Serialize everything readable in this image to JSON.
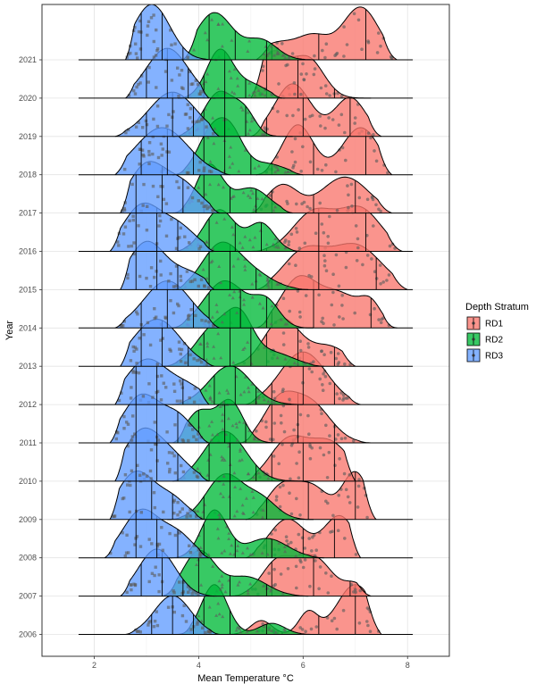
{
  "chart_data": {
    "type": "ridgeline",
    "xlabel": "Mean Temperature °C",
    "ylabel": "Year",
    "xlim": [
      1.0,
      8.8
    ],
    "x_ticks": [
      2,
      4,
      6,
      8
    ],
    "grid": true,
    "legend": {
      "title": "Depth Stratum",
      "placement": "right",
      "entries": [
        "RD1",
        "RD2",
        "RD3"
      ]
    },
    "colors": {
      "RD1": "#F8766D",
      "RD2": "#00BA38",
      "RD3": "#619CFF"
    },
    "years": [
      "2006",
      "2007",
      "2008",
      "2009",
      "2010",
      "2011",
      "2012",
      "2013",
      "2014",
      "2015",
      "2016",
      "2017",
      "2018",
      "2019",
      "2020",
      "2021"
    ],
    "series": [
      {
        "name": "RD1",
        "range": [
          [
            4.4,
            7.5
          ],
          [
            4.6,
            7.3
          ],
          [
            4.9,
            7.1
          ],
          [
            4.9,
            7.4
          ],
          [
            4.9,
            7.0
          ],
          [
            4.8,
            7.3
          ],
          [
            4.9,
            7.1
          ],
          [
            4.5,
            7.0
          ],
          [
            5.1,
            7.8
          ],
          [
            5.1,
            8.0
          ],
          [
            5.0,
            7.9
          ],
          [
            5.0,
            7.7
          ],
          [
            5.1,
            7.7
          ],
          [
            5.0,
            7.5
          ],
          [
            5.0,
            7.3
          ],
          [
            5.1,
            7.8
          ]
        ],
        "peaks": [
          [
            [
              5.2,
              0.2,
              0.25
            ],
            [
              6.1,
              0.18,
              0.4
            ],
            [
              7.0,
              0.35,
              0.9
            ]
          ],
          [
            [
              5.5,
              0.3,
              0.6
            ],
            [
              6.2,
              0.35,
              0.7
            ],
            [
              7.0,
              0.2,
              0.2
            ]
          ],
          [
            [
              5.7,
              0.35,
              0.7
            ],
            [
              6.7,
              0.3,
              0.75
            ]
          ],
          [
            [
              5.6,
              0.3,
              0.6
            ],
            [
              6.2,
              0.3,
              0.55
            ],
            [
              7.0,
              0.25,
              0.85
            ]
          ],
          [
            [
              5.7,
              0.35,
              0.7
            ],
            [
              6.5,
              0.4,
              0.7
            ]
          ],
          [
            [
              5.5,
              0.3,
              0.6
            ],
            [
              6.1,
              0.4,
              0.75
            ]
          ],
          [
            [
              6.0,
              0.45,
              0.95
            ]
          ],
          [
            [
              5.6,
              0.35,
              0.85
            ],
            [
              6.5,
              0.35,
              0.35
            ]
          ],
          [
            [
              5.9,
              0.35,
              0.85
            ],
            [
              6.7,
              0.4,
              0.6
            ],
            [
              7.3,
              0.2,
              0.35
            ]
          ],
          [
            [
              6.0,
              0.4,
              0.65
            ],
            [
              7.0,
              0.5,
              0.8
            ]
          ],
          [
            [
              6.2,
              0.4,
              0.7
            ],
            [
              7.1,
              0.4,
              0.75
            ]
          ],
          [
            [
              5.6,
              0.3,
              0.5
            ],
            [
              6.8,
              0.45,
              0.65
            ]
          ],
          [
            [
              5.9,
              0.3,
              0.9
            ],
            [
              7.1,
              0.35,
              0.85
            ]
          ],
          [
            [
              5.8,
              0.35,
              0.95
            ],
            [
              6.9,
              0.3,
              0.7
            ]
          ],
          [
            [
              5.4,
              0.3,
              0.8
            ],
            [
              6.1,
              0.3,
              0.7
            ]
          ],
          [
            [
              5.5,
              0.35,
              0.3
            ],
            [
              6.2,
              0.3,
              0.4
            ],
            [
              7.1,
              0.35,
              0.95
            ]
          ]
        ],
        "quantiles": [
          [
            5.6,
            6.3,
            7.0
          ],
          [
            5.4,
            6.2,
            6.9
          ],
          [
            5.3,
            6.0,
            6.6
          ],
          [
            5.3,
            6.1,
            7.0
          ],
          [
            5.4,
            6.0,
            6.6
          ],
          [
            5.4,
            5.9,
            6.6
          ],
          [
            5.4,
            6.0,
            6.6
          ],
          [
            5.3,
            5.9,
            6.6
          ],
          [
            5.4,
            6.2,
            7.3
          ],
          [
            5.4,
            6.3,
            7.4
          ],
          [
            5.3,
            6.3,
            7.2
          ],
          [
            5.4,
            6.2,
            7.0
          ],
          [
            5.4,
            6.2,
            7.2
          ],
          [
            5.3,
            6.0,
            6.9
          ],
          [
            5.3,
            5.9,
            6.6
          ],
          [
            5.4,
            6.3,
            7.2
          ]
        ]
      },
      {
        "name": "RD2",
        "range": [
          [
            3.6,
            6.2
          ],
          [
            3.3,
            6.1
          ],
          [
            3.4,
            6.4
          ],
          [
            3.4,
            6.2
          ],
          [
            3.5,
            6.2
          ],
          [
            3.5,
            6.0
          ],
          [
            3.5,
            6.0
          ],
          [
            3.3,
            6.4
          ],
          [
            3.5,
            6.2
          ],
          [
            3.5,
            6.1
          ],
          [
            3.5,
            6.0
          ],
          [
            3.5,
            5.8
          ],
          [
            3.5,
            6.0
          ],
          [
            3.5,
            5.8
          ],
          [
            3.6,
            5.6
          ],
          [
            3.7,
            6.4
          ]
        ],
        "peaks": [
          [
            [
              4.3,
              0.25,
              0.9
            ],
            [
              5.4,
              0.25,
              0.2
            ]
          ],
          [
            [
              4.0,
              0.3,
              0.8
            ],
            [
              4.9,
              0.4,
              0.35
            ]
          ],
          [
            [
              4.3,
              0.25,
              0.85
            ],
            [
              5.3,
              0.4,
              0.35
            ]
          ],
          [
            [
              4.5,
              0.35,
              0.8
            ],
            [
              5.2,
              0.3,
              0.35
            ]
          ],
          [
            [
              4.5,
              0.4,
              0.9
            ]
          ],
          [
            [
              4.0,
              0.25,
              0.55
            ],
            [
              4.6,
              0.25,
              0.75
            ]
          ],
          [
            [
              4.6,
              0.4,
              0.7
            ]
          ],
          [
            [
              4.3,
              0.35,
              0.7
            ],
            [
              4.8,
              0.25,
              0.7
            ],
            [
              5.4,
              0.4,
              0.25
            ]
          ],
          [
            [
              4.5,
              0.4,
              0.85
            ],
            [
              5.3,
              0.25,
              0.45
            ]
          ],
          [
            [
              4.4,
              0.35,
              0.75
            ],
            [
              5.0,
              0.4,
              0.3
            ]
          ],
          [
            [
              4.4,
              0.3,
              0.75
            ],
            [
              5.2,
              0.25,
              0.5
            ]
          ],
          [
            [
              4.2,
              0.25,
              0.85
            ],
            [
              5.0,
              0.35,
              0.45
            ]
          ],
          [
            [
              4.2,
              0.25,
              0.65
            ],
            [
              4.6,
              0.25,
              0.75
            ],
            [
              5.3,
              0.35,
              0.2
            ]
          ],
          [
            [
              4.4,
              0.3,
              0.8
            ],
            [
              4.9,
              0.2,
              0.35
            ]
          ],
          [
            [
              4.4,
              0.25,
              0.85
            ],
            [
              5.0,
              0.3,
              0.25
            ]
          ],
          [
            [
              4.3,
              0.35,
              0.85
            ],
            [
              5.2,
              0.3,
              0.35
            ]
          ]
        ],
        "quantiles": [
          [
            4.1,
            4.6,
            5.3
          ],
          [
            4.0,
            4.6,
            5.3
          ],
          [
            4.1,
            4.7,
            5.4
          ],
          [
            4.1,
            4.6,
            5.3
          ],
          [
            4.2,
            4.6,
            5.1
          ],
          [
            4.0,
            4.5,
            4.9
          ],
          [
            4.3,
            4.7,
            5.1
          ],
          [
            4.1,
            4.6,
            5.0
          ],
          [
            4.2,
            4.8,
            5.3
          ],
          [
            4.2,
            4.6,
            5.1
          ],
          [
            4.2,
            4.7,
            5.2
          ],
          [
            4.1,
            4.6,
            5.1
          ],
          [
            4.1,
            4.5,
            5.0
          ],
          [
            4.1,
            4.5,
            4.9
          ],
          [
            4.1,
            4.5,
            4.9
          ],
          [
            4.2,
            4.7,
            5.3
          ]
        ]
      },
      {
        "name": "RD3",
        "range": [
          [
            2.6,
            4.4
          ],
          [
            2.5,
            4.3
          ],
          [
            2.2,
            4.2
          ],
          [
            2.3,
            4.1
          ],
          [
            2.4,
            4.2
          ],
          [
            2.3,
            4.2
          ],
          [
            2.4,
            4.2
          ],
          [
            2.5,
            4.3
          ],
          [
            2.4,
            4.4
          ],
          [
            2.5,
            4.3
          ],
          [
            2.3,
            4.3
          ],
          [
            2.5,
            4.4
          ],
          [
            2.4,
            4.6
          ],
          [
            2.4,
            4.4
          ],
          [
            2.6,
            4.2
          ],
          [
            2.6,
            4.3
          ]
        ],
        "peaks": [
          [
            [
              3.5,
              0.35,
              0.7
            ]
          ],
          [
            [
              3.2,
              0.35,
              0.85
            ]
          ],
          [
            [
              2.9,
              0.35,
              0.85
            ],
            [
              3.6,
              0.3,
              0.4
            ]
          ],
          [
            [
              2.8,
              0.35,
              0.85
            ],
            [
              3.5,
              0.3,
              0.35
            ]
          ],
          [
            [
              2.9,
              0.35,
              0.85
            ],
            [
              3.5,
              0.35,
              0.4
            ]
          ],
          [
            [
              2.9,
              0.35,
              0.85
            ],
            [
              3.6,
              0.3,
              0.45
            ]
          ],
          [
            [
              3.0,
              0.4,
              0.8
            ],
            [
              3.8,
              0.35,
              0.3
            ]
          ],
          [
            [
              3.2,
              0.45,
              0.85
            ]
          ],
          [
            [
              3.4,
              0.45,
              0.85
            ]
          ],
          [
            [
              3.0,
              0.35,
              0.85
            ],
            [
              3.8,
              0.35,
              0.3
            ]
          ],
          [
            [
              2.9,
              0.35,
              0.8
            ],
            [
              3.6,
              0.35,
              0.45
            ]
          ],
          [
            [
              3.0,
              0.35,
              0.85
            ],
            [
              3.7,
              0.35,
              0.5
            ]
          ],
          [
            [
              3.3,
              0.5,
              0.85
            ]
          ],
          [
            [
              3.5,
              0.45,
              0.8
            ]
          ],
          [
            [
              3.4,
              0.4,
              0.9
            ]
          ],
          [
            [
              3.1,
              0.35,
              1.0
            ]
          ]
        ],
        "quantiles": [
          [
            3.1,
            3.5,
            3.9
          ],
          [
            2.9,
            3.3,
            3.7
          ],
          [
            2.8,
            3.2,
            3.6
          ],
          [
            2.8,
            3.1,
            3.5
          ],
          [
            2.8,
            3.2,
            3.6
          ],
          [
            2.8,
            3.2,
            3.6
          ],
          [
            2.8,
            3.2,
            3.7
          ],
          [
            2.9,
            3.3,
            3.8
          ],
          [
            2.9,
            3.4,
            3.9
          ],
          [
            2.8,
            3.2,
            3.6
          ],
          [
            2.8,
            3.2,
            3.6
          ],
          [
            2.8,
            3.3,
            3.7
          ],
          [
            2.9,
            3.4,
            3.9
          ],
          [
            3.0,
            3.5,
            3.9
          ],
          [
            3.0,
            3.4,
            3.8
          ],
          [
            2.9,
            3.3,
            3.7
          ]
        ]
      }
    ]
  }
}
